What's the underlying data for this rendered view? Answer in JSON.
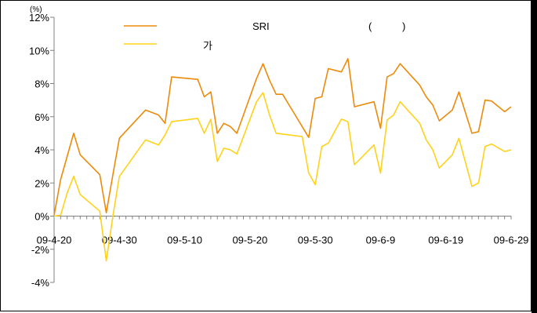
{
  "chart_data": {
    "type": "line",
    "unit_label": "(%)",
    "ylim": [
      -4,
      12
    ],
    "y_ticks": [
      -4,
      -2,
      0,
      2,
      4,
      6,
      8,
      10,
      12
    ],
    "y_tick_labels": [
      "-4%",
      "-2%",
      "0%",
      "2%",
      "4%",
      "6%",
      "8%",
      "10%",
      "12%"
    ],
    "x_range": [
      0,
      70
    ],
    "x_ticks": [
      0,
      10,
      20,
      30,
      40,
      50,
      60,
      70
    ],
    "x_tick_labels": [
      "09-4-20",
      "09-4-30",
      "09-5-10",
      "09-5-20",
      "09-5-30",
      "09-6-9",
      "09-6-19",
      "09-6-29"
    ],
    "legend": {
      "series1_label": "SRI",
      "series1_paren_open": "(",
      "series1_paren_close": ")",
      "series2_label": "가"
    },
    "grid": false,
    "series": [
      {
        "name": "SRI",
        "color": "#ED8A0A",
        "x": [
          0,
          1,
          3,
          4,
          7,
          8,
          9,
          10,
          14,
          16,
          17,
          18,
          22,
          23,
          24,
          25,
          26,
          27,
          28,
          31,
          32,
          33,
          34,
          35,
          38,
          39,
          40,
          41,
          42,
          44,
          45,
          46,
          49,
          50,
          51,
          52,
          53,
          56,
          57,
          58,
          59,
          61,
          62,
          64,
          65,
          66,
          67,
          69,
          70
        ],
        "y": [
          0.05,
          2.2,
          5.0,
          3.7,
          2.5,
          0.2,
          2.5,
          4.7,
          6.4,
          6.1,
          5.6,
          8.4,
          8.25,
          7.2,
          7.5,
          5.0,
          5.6,
          5.4,
          5.0,
          8.3,
          9.2,
          8.2,
          7.35,
          7.35,
          5.4,
          4.75,
          7.1,
          7.2,
          8.9,
          8.7,
          9.5,
          6.6,
          6.9,
          5.3,
          8.4,
          8.6,
          9.2,
          7.9,
          7.2,
          6.7,
          5.75,
          6.4,
          7.5,
          5.0,
          5.1,
          7.0,
          6.95,
          6.3,
          6.6
        ]
      },
      {
        "name": "가",
        "color": "#FFD21A",
        "x": [
          0,
          1,
          2,
          3,
          4,
          7,
          8,
          9,
          10,
          14,
          16,
          17,
          18,
          22,
          23,
          24,
          25,
          26,
          27,
          28,
          31,
          32,
          33,
          34,
          35,
          38,
          39,
          40,
          41,
          42,
          44,
          45,
          46,
          49,
          50,
          51,
          52,
          53,
          56,
          57,
          58,
          59,
          61,
          62,
          64,
          65,
          66,
          67,
          69,
          70
        ],
        "y": [
          0.0,
          0.05,
          1.4,
          2.4,
          1.3,
          0.3,
          -2.7,
          0.0,
          2.4,
          4.6,
          4.3,
          4.9,
          5.7,
          5.9,
          5.0,
          5.85,
          3.3,
          4.1,
          4.0,
          3.75,
          6.9,
          7.45,
          6.1,
          5.0,
          4.95,
          4.8,
          2.6,
          1.9,
          4.2,
          4.4,
          5.85,
          5.7,
          3.1,
          4.3,
          2.6,
          5.8,
          6.1,
          6.9,
          5.6,
          4.6,
          4.0,
          2.9,
          3.7,
          4.7,
          1.8,
          2.0,
          4.2,
          4.35,
          3.9,
          4.0
        ]
      }
    ]
  }
}
